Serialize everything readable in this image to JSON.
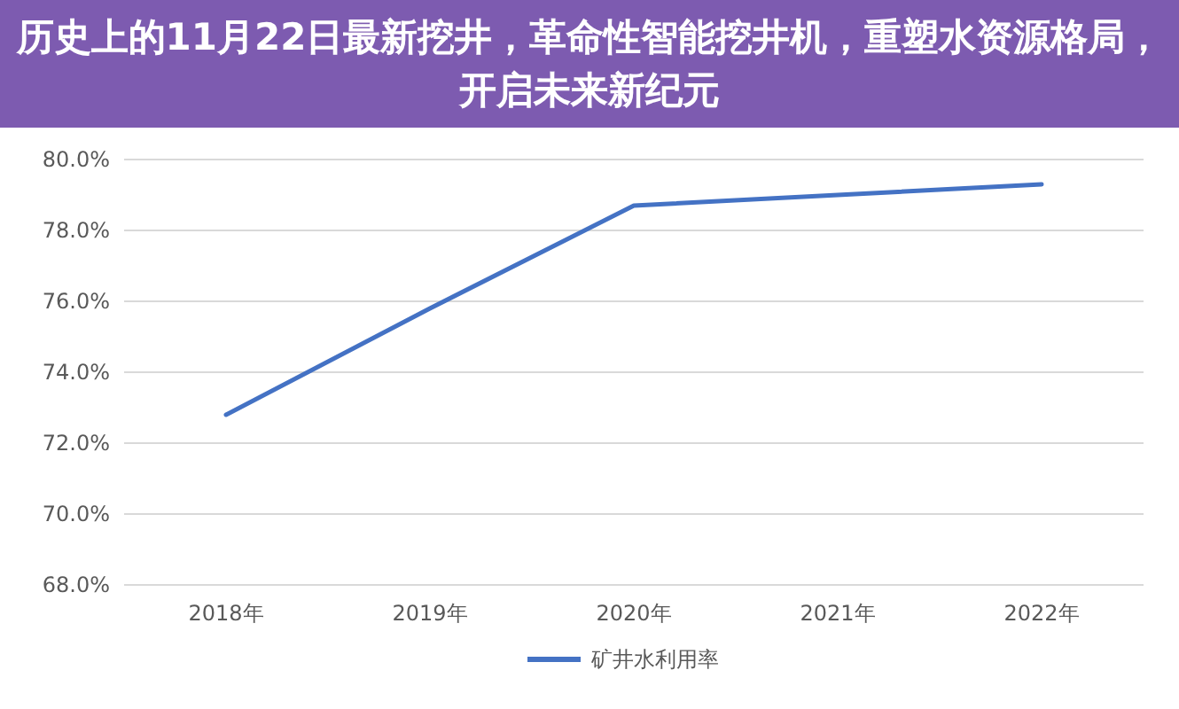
{
  "chart_data": {
    "type": "line",
    "title": "历史上的11月22日最新挖井，革命性智能挖井机，重塑水资源格局，开启未来新纪元",
    "categories": [
      "2018年",
      "2019年",
      "2020年",
      "2021年",
      "2022年"
    ],
    "series": [
      {
        "name": "矿井水利用率",
        "color": "#4472c4",
        "values": [
          72.8,
          75.8,
          78.7,
          79.0,
          79.3
        ]
      }
    ],
    "ylim": [
      68,
      80
    ],
    "yticks": [
      {
        "value": 68,
        "label": "68.0%"
      },
      {
        "value": 70,
        "label": "70.0%"
      },
      {
        "value": 72,
        "label": "72.0%"
      },
      {
        "value": 74,
        "label": "74.0%"
      },
      {
        "value": 76,
        "label": "76.0%"
      },
      {
        "value": 78,
        "label": "78.0%"
      },
      {
        "value": 80,
        "label": "80.0%"
      }
    ],
    "grid": "y",
    "legend": "bottom",
    "marker": "none",
    "line_style": "solid"
  }
}
